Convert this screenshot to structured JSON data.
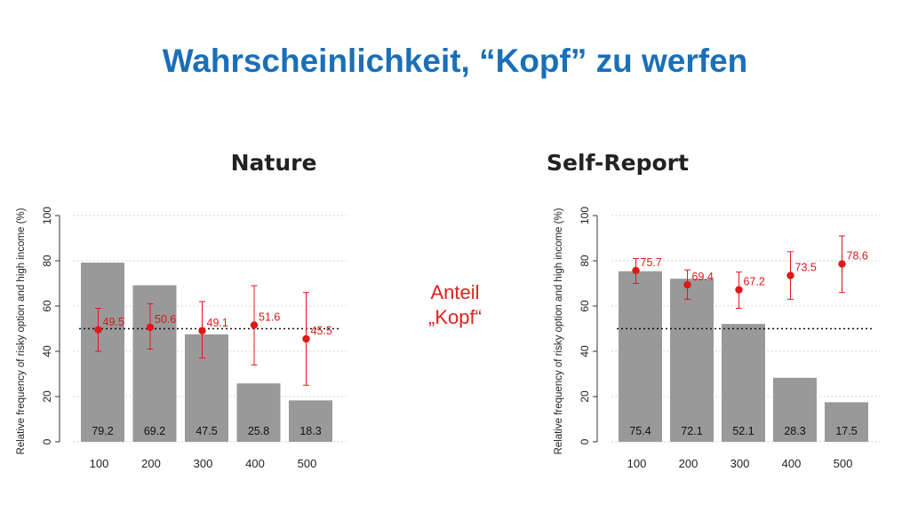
{
  "slide": {
    "title": "Wahrscheinlichkeit, “Kopf” zu werfen",
    "annotation_line1": "Anteil",
    "annotation_line2": "„Kopf“"
  },
  "colors": {
    "title": "#1a6fb8",
    "bar": "#999999",
    "point": "#e01818",
    "annotation": "#e02020"
  },
  "chart_data": [
    {
      "type": "bar",
      "title": "Nature",
      "ylabel": "Relative frequency of risky option and high income (%)",
      "xlabel": "",
      "ylim": [
        0,
        100
      ],
      "yticks": [
        0,
        20,
        40,
        60,
        80,
        100
      ],
      "grid": true,
      "reference_line": 50,
      "categories": [
        "100",
        "200",
        "300",
        "400",
        "500"
      ],
      "bar_values": [
        79.2,
        69.2,
        47.5,
        25.8,
        18.3
      ],
      "points": [
        49.5,
        50.6,
        49.1,
        51.6,
        45.5
      ],
      "error_low": [
        40,
        41,
        37,
        34,
        25
      ],
      "error_high": [
        59,
        61,
        62,
        69,
        66
      ]
    },
    {
      "type": "bar",
      "title": "Self-Report",
      "ylabel": "Relative frequency of risky option and high income (%)",
      "xlabel": "",
      "ylim": [
        0,
        100
      ],
      "yticks": [
        0,
        20,
        40,
        60,
        80,
        100
      ],
      "grid": true,
      "reference_line": 50,
      "categories": [
        "100",
        "200",
        "300",
        "400",
        "500"
      ],
      "bar_values": [
        75.4,
        72.1,
        52.1,
        28.3,
        17.5
      ],
      "points": [
        75.7,
        69.4,
        67.2,
        73.5,
        78.6
      ],
      "error_low": [
        70,
        63,
        59,
        63,
        66
      ],
      "error_high": [
        81,
        76,
        75,
        84,
        91
      ]
    }
  ]
}
